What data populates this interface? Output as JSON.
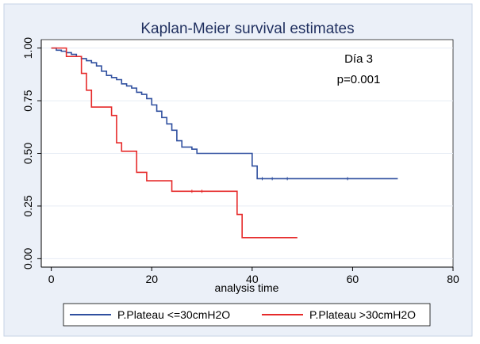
{
  "chart_data": {
    "type": "line",
    "title": "Kaplan-Meier survival estimates",
    "xlabel": "analysis time",
    "ylabel": "",
    "xlim": [
      -2,
      80
    ],
    "ylim": [
      -0.04,
      1.04
    ],
    "xticks": [
      0,
      20,
      40,
      60,
      80
    ],
    "xtick_labels": [
      "0",
      "20",
      "40",
      "60",
      "80"
    ],
    "yticks": [
      0,
      0.25,
      0.5,
      0.75,
      1
    ],
    "ytick_labels": [
      "0.00",
      "0.25",
      "0.50",
      "0.75",
      "1.00"
    ],
    "grid": true,
    "legend_position": "bottom",
    "annotations": [
      "Día 3",
      "p=0.001"
    ],
    "series": [
      {
        "name": "P.Plateau <=30cmH2O",
        "color": "#2f4f9f",
        "step": true,
        "x": [
          0,
          1,
          2,
          3,
          4,
          5,
          6,
          7,
          8,
          9,
          10,
          11,
          12,
          13,
          14,
          15,
          16,
          17,
          18,
          19,
          20,
          21,
          22,
          23,
          24,
          25,
          26,
          27,
          28,
          29,
          30,
          40,
          41,
          69
        ],
        "y": [
          1.0,
          0.99,
          0.985,
          0.978,
          0.97,
          0.96,
          0.95,
          0.94,
          0.93,
          0.915,
          0.89,
          0.87,
          0.86,
          0.85,
          0.83,
          0.82,
          0.81,
          0.79,
          0.78,
          0.76,
          0.73,
          0.7,
          0.67,
          0.64,
          0.61,
          0.56,
          0.53,
          0.53,
          0.52,
          0.5,
          0.5,
          0.44,
          0.38,
          0.38
        ],
        "censored_x": [
          42,
          44,
          47,
          59
        ]
      },
      {
        "name": "P.Plateau >30cmH2O",
        "color": "#e62a2a",
        "step": true,
        "x": [
          0,
          3,
          6,
          7,
          8,
          12,
          13,
          14,
          16,
          17,
          19,
          24,
          37,
          38,
          49
        ],
        "y": [
          1.0,
          0.96,
          0.88,
          0.8,
          0.72,
          0.68,
          0.55,
          0.51,
          0.51,
          0.41,
          0.37,
          0.32,
          0.21,
          0.1,
          0.1
        ],
        "censored_x": [
          28,
          30
        ]
      }
    ]
  }
}
